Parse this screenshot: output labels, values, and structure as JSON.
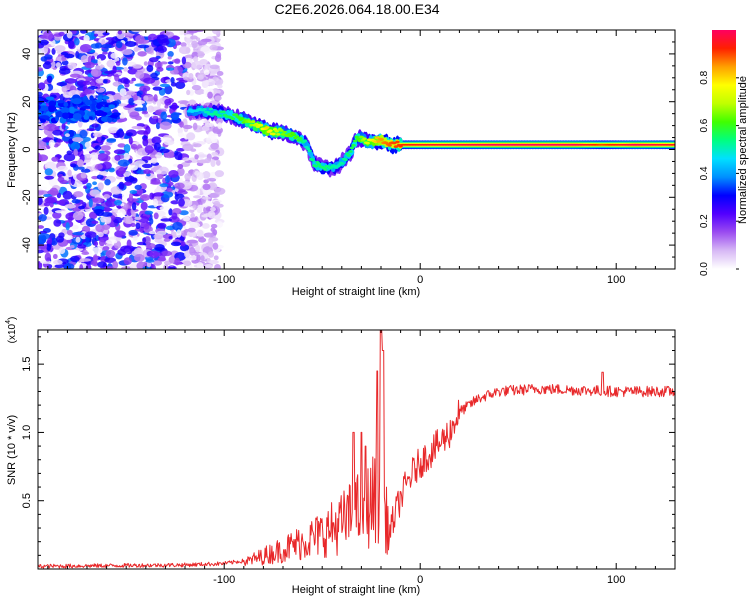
{
  "title": "C2E6.2026.064.18.00.E34",
  "colors": {
    "background": "#ffffff",
    "snr_line": "#e8282a",
    "axis": "#000000"
  },
  "chart_data": [
    {
      "type": "heatmap",
      "name": "spectrogram",
      "xlabel": "Height of straight line (km)",
      "ylabel": "Frequency (Hz)",
      "xlim": [
        -195,
        130
      ],
      "ylim": [
        -50,
        50
      ],
      "x_ticks": [
        -100,
        0,
        100
      ],
      "x_tick_labels": [
        "-100",
        "0",
        "100"
      ],
      "y_ticks": [
        -40,
        -20,
        0,
        20,
        40
      ],
      "y_tick_labels": [
        "-40",
        "-20",
        "0",
        "20",
        "40"
      ],
      "colorbar": {
        "label": "Normalized spectral amplitude",
        "range": [
          0,
          1
        ],
        "ticks": [
          0.0,
          0.2,
          0.4,
          0.6,
          0.8
        ],
        "tick_labels": [
          "0.0",
          "0.2",
          "0.4",
          "0.6",
          "0.8"
        ],
        "colormap": [
          "#ffffff",
          "#d7b8f5",
          "#9b4cf0",
          "#5200ff",
          "#0000ff",
          "#0090ff",
          "#00e0ff",
          "#00ff80",
          "#40ff00",
          "#c0ff00",
          "#ffff00",
          "#ffa000",
          "#ff2000",
          "#ff0060"
        ]
      },
      "noise_region_x": [
        -195,
        -102
      ],
      "ridge": [
        {
          "x": -118,
          "f": 16,
          "a": 0.45
        },
        {
          "x": -110,
          "f": 16,
          "a": 0.5
        },
        {
          "x": -100,
          "f": 15,
          "a": 0.55
        },
        {
          "x": -92,
          "f": 13,
          "a": 0.6
        },
        {
          "x": -84,
          "f": 10,
          "a": 0.7
        },
        {
          "x": -78,
          "f": 8,
          "a": 0.8
        },
        {
          "x": -70,
          "f": 7,
          "a": 0.65
        },
        {
          "x": -62,
          "f": 5,
          "a": 0.6
        },
        {
          "x": -58,
          "f": 2,
          "a": 0.5
        },
        {
          "x": -54,
          "f": -6,
          "a": 0.55
        },
        {
          "x": -48,
          "f": -8,
          "a": 0.55
        },
        {
          "x": -42,
          "f": -7,
          "a": 0.5
        },
        {
          "x": -36,
          "f": -2,
          "a": 0.55
        },
        {
          "x": -32,
          "f": 5,
          "a": 0.6
        },
        {
          "x": -26,
          "f": 3,
          "a": 0.75
        },
        {
          "x": -20,
          "f": 4,
          "a": 0.85
        },
        {
          "x": -14,
          "f": 2,
          "a": 0.9
        },
        {
          "x": 0,
          "f": 2,
          "a": 0.95
        },
        {
          "x": 40,
          "f": 2,
          "a": 1.0
        },
        {
          "x": 80,
          "f": 2,
          "a": 1.0
        },
        {
          "x": 93,
          "f": 2,
          "a": 0.9
        },
        {
          "x": 110,
          "f": 2,
          "a": 1.0
        },
        {
          "x": 130,
          "f": 2,
          "a": 0.95
        }
      ]
    },
    {
      "type": "line",
      "name": "snr",
      "xlabel": "Height of straight line (km)",
      "ylabel": "SNR (10 * v/v)",
      "y_multiplier_label": "(x10",
      "y_multiplier_exp": "4",
      "xlim": [
        -195,
        130
      ],
      "ylim": [
        0,
        1.75
      ],
      "x_ticks": [
        -100,
        0,
        100
      ],
      "x_tick_labels": [
        "-100",
        "0",
        "100"
      ],
      "y_ticks": [
        0.5,
        1.0,
        1.5
      ],
      "y_tick_labels": [
        "0.5",
        "1.0",
        "1.5"
      ],
      "envelope": {
        "x": [
          -195,
          -120,
          -100,
          -90,
          -80,
          -70,
          -60,
          -50,
          -40,
          -30,
          -25,
          -20,
          -18,
          -15,
          -10,
          -5,
          0,
          5,
          10,
          15,
          20,
          30,
          40,
          60,
          80,
          100,
          130
        ],
        "y": [
          0.02,
          0.03,
          0.04,
          0.06,
          0.12,
          0.18,
          0.25,
          0.32,
          0.42,
          0.55,
          0.6,
          0.75,
          0.5,
          0.3,
          0.52,
          0.68,
          0.78,
          0.85,
          0.92,
          1.0,
          1.15,
          1.25,
          1.3,
          1.32,
          1.31,
          1.3,
          1.3
        ]
      },
      "spikes": [
        {
          "x": -34,
          "y": 1.0
        },
        {
          "x": -30,
          "y": 1.0
        },
        {
          "x": -28,
          "y": 0.9
        },
        {
          "x": -22,
          "y": 1.45
        },
        {
          "x": -20,
          "y": 1.75
        },
        {
          "x": -19,
          "y": 1.6
        },
        {
          "x": 93,
          "y": 1.44
        }
      ]
    }
  ]
}
